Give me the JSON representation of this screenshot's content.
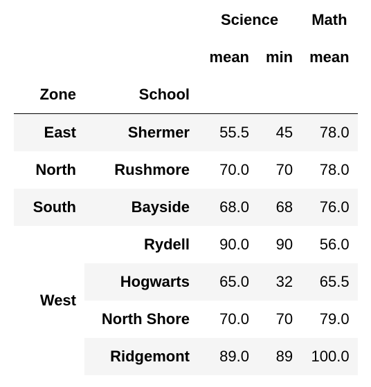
{
  "table": {
    "column_groups": [
      "Science",
      "Math"
    ],
    "sub_headers": [
      "mean",
      "min",
      "mean"
    ],
    "index_names": [
      "Zone",
      "School"
    ],
    "rows": [
      {
        "zone": "East",
        "school": "Shermer",
        "sci_mean": "55.5",
        "sci_min": "45",
        "math_mean": "78.0"
      },
      {
        "zone": "North",
        "school": "Rushmore",
        "sci_mean": "70.0",
        "sci_min": "70",
        "math_mean": "78.0"
      },
      {
        "zone": "South",
        "school": "Bayside",
        "sci_mean": "68.0",
        "sci_min": "68",
        "math_mean": "76.0"
      },
      {
        "zone": "West",
        "school": "Rydell",
        "sci_mean": "90.0",
        "sci_min": "90",
        "math_mean": "56.0"
      },
      {
        "zone": "",
        "school": "Hogwarts",
        "sci_mean": "65.0",
        "sci_min": "32",
        "math_mean": "65.5"
      },
      {
        "zone": "",
        "school": "North Shore",
        "sci_mean": "70.0",
        "sci_min": "70",
        "math_mean": "79.0"
      },
      {
        "zone": "",
        "school": "Ridgemont",
        "sci_mean": "89.0",
        "sci_min": "89",
        "math_mean": "100.0"
      }
    ]
  }
}
